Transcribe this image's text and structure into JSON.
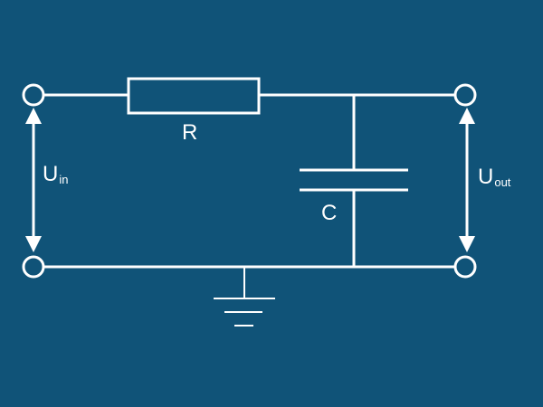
{
  "diagram": {
    "resistor_label": "R",
    "capacitor_label": "C",
    "input_voltage": {
      "main": "U",
      "sub": "in"
    },
    "output_voltage": {
      "main": "U",
      "sub": "out"
    }
  },
  "colors": {
    "background": "#105378",
    "line": "#ffffff"
  }
}
